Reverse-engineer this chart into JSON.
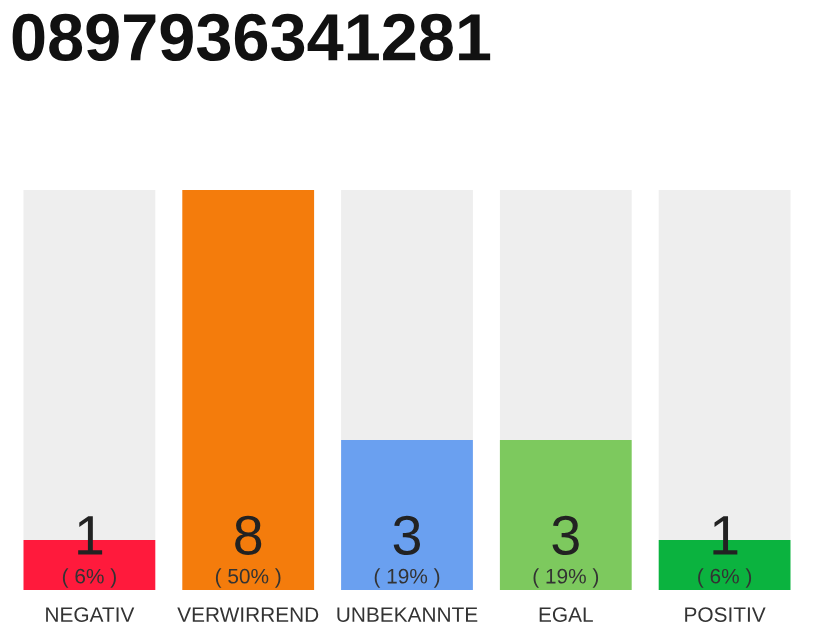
{
  "chart_data": {
    "type": "bar",
    "title": "0897936341281",
    "categories": [
      "NEGATIV",
      "VERWIRREND",
      "UNBEKANNTE",
      "EGAL",
      "POSITIV"
    ],
    "stacked": true,
    "annotations": [
      "( 6% )",
      "( 50% )",
      "( 19% )",
      "( 19% )",
      "( 6% )"
    ],
    "series": [
      {
        "color": "#ff1a3c",
        "colors": [
          "#ff1a3c",
          "#f47c0c",
          "#6aa0f0",
          "#7dc95e",
          "#0bb33f"
        ],
        "values": [
          1,
          8,
          3,
          3,
          1
        ],
        "value_labels": [
          "1",
          "8",
          "3",
          "3",
          "1"
        ]
      },
      {
        "color": "#eeeeee",
        "values": [
          7,
          0,
          5,
          5,
          7
        ],
        "value_labels": [
          null,
          null,
          null,
          null,
          null
        ]
      }
    ]
  }
}
